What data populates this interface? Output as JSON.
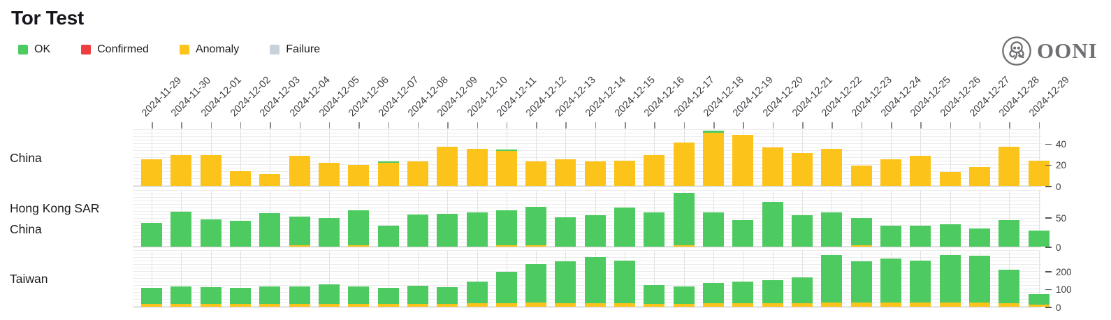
{
  "title": "Tor Test",
  "legend": [
    {
      "label": "OK",
      "color": "#4ecb60"
    },
    {
      "label": "Confirmed",
      "color": "#ee3e3e"
    },
    {
      "label": "Anomaly",
      "color": "#fcc31a"
    },
    {
      "label": "Failure",
      "color": "#c9d2da"
    }
  ],
  "logo": {
    "wordmark": "OONI"
  },
  "colors": {
    "grid": "#ececec",
    "axis_line": "#c9c9c9",
    "tick": "#8a8a8a",
    "text": "#1c1c1c"
  },
  "chart_data": {
    "type": "bar",
    "stacked": true,
    "legend_position": "top-left",
    "grid": true,
    "x": [
      "2024-11-29",
      "2024-11-30",
      "2024-12-01",
      "2024-12-02",
      "2024-12-03",
      "2024-12-04",
      "2024-12-05",
      "2024-12-06",
      "2024-12-07",
      "2024-12-08",
      "2024-12-09",
      "2024-12-10",
      "2024-12-11",
      "2024-12-12",
      "2024-12-13",
      "2024-12-14",
      "2024-12-15",
      "2024-12-16",
      "2024-12-17",
      "2024-12-18",
      "2024-12-19",
      "2024-12-20",
      "2024-12-21",
      "2024-12-22",
      "2024-12-23",
      "2024-12-24",
      "2024-12-25",
      "2024-12-26",
      "2024-12-27",
      "2024-12-28",
      "2024-12-29"
    ],
    "rows": [
      {
        "label": "China",
        "label_lines": [
          "China"
        ],
        "ylim": [
          0,
          54
        ],
        "yticks": [
          0,
          20,
          40
        ],
        "series": [
          {
            "name": "Anomaly",
            "values": [
              25,
              29,
              29,
              14,
              11,
              28,
              22,
              20,
              22,
              23,
              37,
              35,
              33,
              23,
              25,
              23,
              24,
              29,
              41,
              50,
              48,
              36,
              31,
              35,
              19,
              25,
              28,
              13,
              18,
              37,
              24
            ]
          },
          {
            "name": "OK",
            "values": [
              0,
              0,
              0,
              0,
              0,
              0,
              0,
              0,
              1,
              0,
              0,
              0,
              1,
              0,
              0,
              0,
              0,
              0,
              0,
              2,
              0,
              0,
              0,
              0,
              0,
              0,
              0,
              0,
              0,
              0,
              0
            ]
          }
        ]
      },
      {
        "label": "Hong Kong SAR China",
        "label_lines": [
          "Hong Kong SAR",
          "China"
        ],
        "ylim": [
          0,
          98
        ],
        "yticks": [
          0,
          50
        ],
        "series": [
          {
            "name": "Anomaly",
            "values": [
              0,
              0,
              0,
              0,
              0,
              2,
              0,
              3,
              0,
              0,
              0,
              0,
              2,
              2,
              0,
              0,
              0,
              0,
              2,
              0,
              0,
              0,
              0,
              0,
              2,
              0,
              0,
              0,
              0,
              0,
              0
            ]
          },
          {
            "name": "OK",
            "values": [
              41,
              60,
              47,
              44,
              57,
              49,
              49,
              59,
              36,
              55,
              56,
              58,
              60,
              66,
              50,
              54,
              67,
              58,
              90,
              59,
              45,
              76,
              54,
              58,
              47,
              36,
              36,
              38,
              31,
              45,
              28
            ]
          }
        ]
      },
      {
        "label": "Taiwan",
        "label_lines": [
          "Taiwan"
        ],
        "ylim": [
          0,
          322
        ],
        "yticks": [
          0,
          100,
          200
        ],
        "series": [
          {
            "name": "Anomaly",
            "values": [
              15,
              15,
              15,
              15,
              15,
              15,
              15,
              15,
              15,
              15,
              15,
              18,
              18,
              22,
              20,
              20,
              20,
              15,
              15,
              18,
              18,
              18,
              18,
              25,
              22,
              22,
              22,
              25,
              22,
              20,
              12
            ]
          },
          {
            "name": "OK",
            "values": [
              90,
              100,
              97,
              93,
              100,
              100,
              109,
              100,
              93,
              102,
              95,
              123,
              178,
              219,
              234,
              260,
              238,
              106,
              100,
              117,
              122,
              132,
              147,
              265,
              232,
              248,
              238,
              265,
              265,
              188,
              60
            ]
          }
        ]
      }
    ]
  }
}
